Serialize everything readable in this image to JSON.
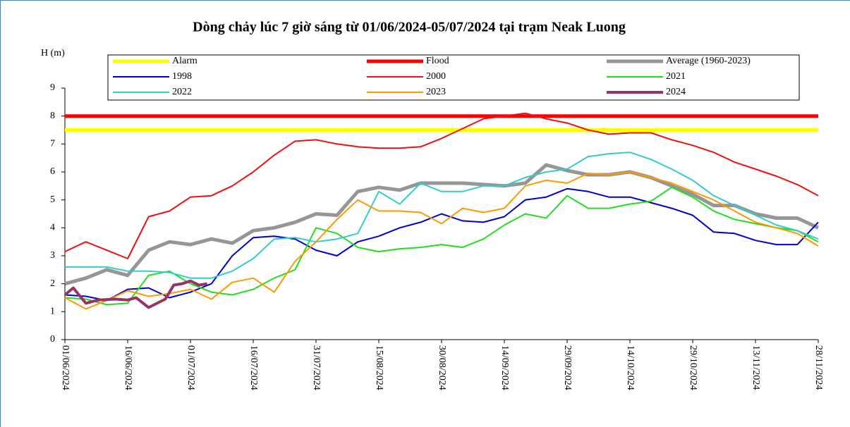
{
  "chart_data": {
    "type": "line",
    "title": "Dòng chảy lúc 7 giờ sáng từ 01/06/2024-05/07/2024 tại trạm Neak Luong",
    "y_label": "H (m)",
    "ylim": [
      0,
      9
    ],
    "yticks": [
      0,
      1,
      2,
      3,
      4,
      5,
      6,
      7,
      8,
      9
    ],
    "xlim": [
      "01/06/2024",
      "28/11/2024"
    ],
    "xticks": [
      "01/06/2024",
      "16/06/2024",
      "01/07/2024",
      "16/07/2024",
      "31/07/2024",
      "15/08/2024",
      "30/08/2024",
      "14/09/2024",
      "29/09/2024",
      "14/10/2024",
      "29/10/2024",
      "13/11/2024",
      "28/11/2024"
    ],
    "x": [
      "01/06/2024",
      "06/06/2024",
      "11/06/2024",
      "16/06/2024",
      "21/06/2024",
      "26/06/2024",
      "01/07/2024",
      "06/07/2024",
      "11/07/2024",
      "16/07/2024",
      "21/07/2024",
      "26/07/2024",
      "31/07/2024",
      "05/08/2024",
      "10/08/2024",
      "15/08/2024",
      "20/08/2024",
      "25/08/2024",
      "30/08/2024",
      "04/09/2024",
      "09/09/2024",
      "14/09/2024",
      "19/09/2024",
      "24/09/2024",
      "29/09/2024",
      "04/10/2024",
      "09/10/2024",
      "14/10/2024",
      "19/10/2024",
      "24/10/2024",
      "29/10/2024",
      "03/11/2024",
      "08/11/2024",
      "13/11/2024",
      "18/11/2024",
      "23/11/2024",
      "28/11/2024"
    ],
    "series": [
      {
        "name": "Alarm",
        "color": "#ffff00",
        "line_width": 5,
        "x": [
          "01/06/2024",
          "28/11/2024"
        ],
        "values": [
          7.5,
          7.5
        ]
      },
      {
        "name": "Flood",
        "color": "#ff0000",
        "line_width": 5,
        "x": [
          "01/06/2024",
          "28/11/2024"
        ],
        "values": [
          8,
          8
        ]
      },
      {
        "name": "Average (1960-2023)",
        "color": "#969696",
        "line_width": 5,
        "values": [
          2.0,
          2.2,
          2.5,
          2.3,
          3.2,
          3.5,
          3.4,
          3.6,
          3.45,
          3.9,
          4.0,
          4.2,
          4.5,
          4.45,
          5.3,
          5.45,
          5.35,
          5.6,
          5.6,
          5.6,
          5.55,
          5.5,
          5.6,
          6.25,
          6.05,
          5.9,
          5.9,
          6.0,
          5.8,
          5.5,
          5.2,
          4.8,
          4.8,
          4.5,
          4.35,
          4.35,
          4.0
        ]
      },
      {
        "name": "1998",
        "color": "#0000cc",
        "line_width": 2,
        "values": [
          1.6,
          1.55,
          1.4,
          1.8,
          1.85,
          1.5,
          1.7,
          2.0,
          3.0,
          3.65,
          3.7,
          3.6,
          3.2,
          3.0,
          3.5,
          3.7,
          4.0,
          4.2,
          4.5,
          4.25,
          4.2,
          4.4,
          5.0,
          5.1,
          5.4,
          5.3,
          5.1,
          5.1,
          4.9,
          4.7,
          4.45,
          3.85,
          3.8,
          3.55,
          3.4,
          3.4,
          4.2
        ]
      },
      {
        "name": "2000",
        "color": "#ee1111",
        "line_width": 2,
        "values": [
          3.15,
          3.5,
          3.2,
          2.9,
          4.4,
          4.6,
          5.1,
          5.15,
          5.5,
          6.0,
          6.6,
          7.1,
          7.15,
          7.0,
          6.9,
          6.85,
          6.85,
          6.9,
          7.2,
          7.55,
          7.9,
          8.0,
          8.1,
          7.9,
          7.75,
          7.5,
          7.35,
          7.4,
          7.4,
          7.15,
          6.95,
          6.7,
          6.35,
          6.1,
          5.85,
          5.55,
          5.15
        ]
      },
      {
        "name": "2021",
        "color": "#22dd22",
        "line_width": 2,
        "values": [
          1.5,
          1.45,
          1.25,
          1.3,
          2.3,
          2.45,
          2.0,
          1.7,
          1.6,
          1.8,
          2.2,
          2.5,
          4.0,
          3.8,
          3.3,
          3.15,
          3.25,
          3.3,
          3.4,
          3.3,
          3.6,
          4.1,
          4.5,
          4.35,
          5.15,
          4.7,
          4.7,
          4.85,
          4.95,
          5.45,
          5.1,
          4.6,
          4.3,
          4.15,
          4.0,
          3.9,
          3.5
        ]
      },
      {
        "name": "2022",
        "color": "#33cccc",
        "line_width": 2,
        "values": [
          2.6,
          2.6,
          2.6,
          2.45,
          2.45,
          2.4,
          2.2,
          2.2,
          2.45,
          2.9,
          3.6,
          3.65,
          3.5,
          3.6,
          3.8,
          5.3,
          4.85,
          5.6,
          5.3,
          5.3,
          5.5,
          5.5,
          5.8,
          6.0,
          6.1,
          6.55,
          6.65,
          6.7,
          6.45,
          6.1,
          5.7,
          5.15,
          4.8,
          4.45,
          4.1,
          3.9,
          3.6
        ]
      },
      {
        "name": "2023",
        "color": "#ff9900",
        "line_width": 2,
        "values": [
          1.5,
          1.1,
          1.4,
          1.75,
          1.55,
          1.65,
          1.8,
          1.45,
          2.05,
          2.2,
          1.7,
          2.8,
          3.5,
          4.3,
          5.0,
          4.6,
          4.6,
          4.55,
          4.15,
          4.7,
          4.55,
          4.7,
          5.5,
          5.7,
          5.6,
          5.95,
          5.9,
          6.0,
          5.8,
          5.6,
          5.3,
          5.0,
          4.6,
          4.2,
          4.0,
          3.8,
          3.35
        ]
      },
      {
        "name": "2024",
        "color": "#993366",
        "line_width": 4,
        "x": [
          "01/06/2024",
          "03/06/2024",
          "06/06/2024",
          "09/06/2024",
          "13/06/2024",
          "16/06/2024",
          "18/06/2024",
          "21/06/2024",
          "25/06/2024",
          "27/06/2024",
          "29/06/2024",
          "01/07/2024",
          "03/07/2024",
          "05/07/2024"
        ],
        "values": [
          1.6,
          1.85,
          1.3,
          1.42,
          1.45,
          1.42,
          1.5,
          1.15,
          1.45,
          1.95,
          2.0,
          2.1,
          1.95,
          2.0
        ]
      }
    ]
  }
}
